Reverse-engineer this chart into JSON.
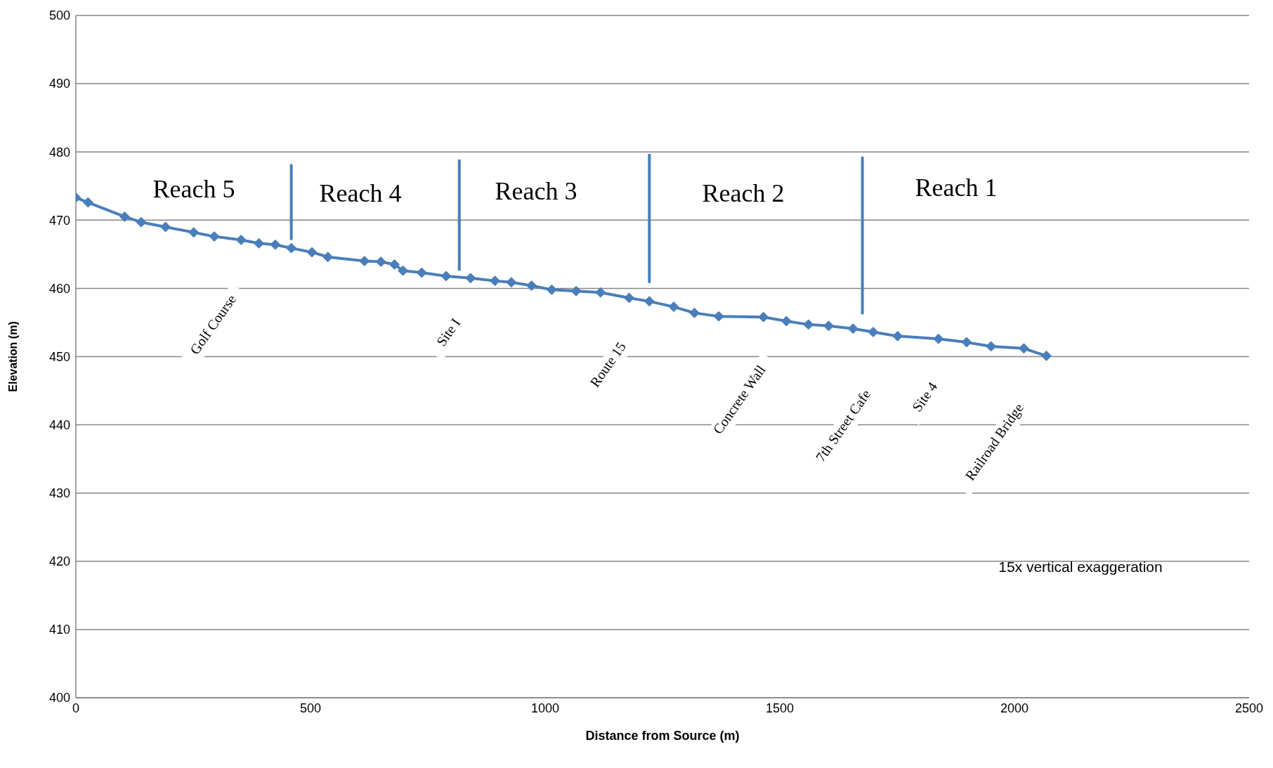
{
  "chart_data": {
    "type": "line",
    "xlabel": "Distance from Source (m)",
    "ylabel": "Elevation (m)",
    "xlim": [
      0,
      2500
    ],
    "xticks": [
      0,
      500,
      1000,
      1500,
      2000,
      2500
    ],
    "ylim": [
      400,
      500
    ],
    "yticks": [
      400,
      410,
      420,
      430,
      440,
      450,
      460,
      470,
      480,
      490,
      500
    ],
    "grid": "y",
    "marker": "diamond",
    "line_style": "solid",
    "series": [
      {
        "color": "#4a7ebb",
        "x": [
          0,
          26,
          104,
          139,
          191,
          251,
          295,
          352,
          390,
          425,
          459,
          503,
          537,
          615,
          650,
          679,
          697,
          737,
          789,
          841,
          893,
          928,
          971,
          1014,
          1066,
          1118,
          1179,
          1222,
          1274,
          1318,
          1370,
          1465,
          1514,
          1561,
          1604,
          1656,
          1699,
          1751,
          1838,
          1898,
          1950,
          2020,
          2068
        ],
        "values": [
          473.3,
          472.6,
          470.5,
          469.7,
          469,
          468.2,
          467.6,
          467.1,
          466.6,
          466.4,
          465.9,
          465.3,
          464.6,
          464,
          463.9,
          463.5,
          462.6,
          462.3,
          461.8,
          461.5,
          461.1,
          460.9,
          460.4,
          459.8,
          459.6,
          459.4,
          458.6,
          458.1,
          457.3,
          456.4,
          455.9,
          455.8,
          455.2,
          454.7,
          454.5,
          454.1,
          453.6,
          453,
          452.6,
          452.1,
          451.5,
          451.2,
          450.1
        ]
      },
      {
        "color": "#4a7ebb",
        "marker": "none",
        "x": [
          459,
          459
        ],
        "values": [
          478.2,
          467.1
        ]
      },
      {
        "color": "#4a7ebb",
        "marker": "none",
        "x": [
          817,
          817
        ],
        "values": [
          478.9,
          462.6
        ]
      },
      {
        "color": "#4a7ebb",
        "marker": "none",
        "x": [
          1222,
          1222
        ],
        "values": [
          479.7,
          460.8
        ]
      },
      {
        "color": "#4a7ebb",
        "marker": "none",
        "x": [
          1676,
          1676
        ],
        "values": [
          479.3,
          456.2
        ]
      }
    ],
    "annotations": [
      "Reach 5",
      "Reach 4",
      "Reach 3",
      "Reach 2",
      "Reach 1",
      "Golf Course",
      "Site I",
      "Route 15",
      "Concrete Wall",
      "7th Street Cafe",
      "Site 4",
      "Railroad Bridge",
      "15x vertical exaggeration"
    ]
  }
}
